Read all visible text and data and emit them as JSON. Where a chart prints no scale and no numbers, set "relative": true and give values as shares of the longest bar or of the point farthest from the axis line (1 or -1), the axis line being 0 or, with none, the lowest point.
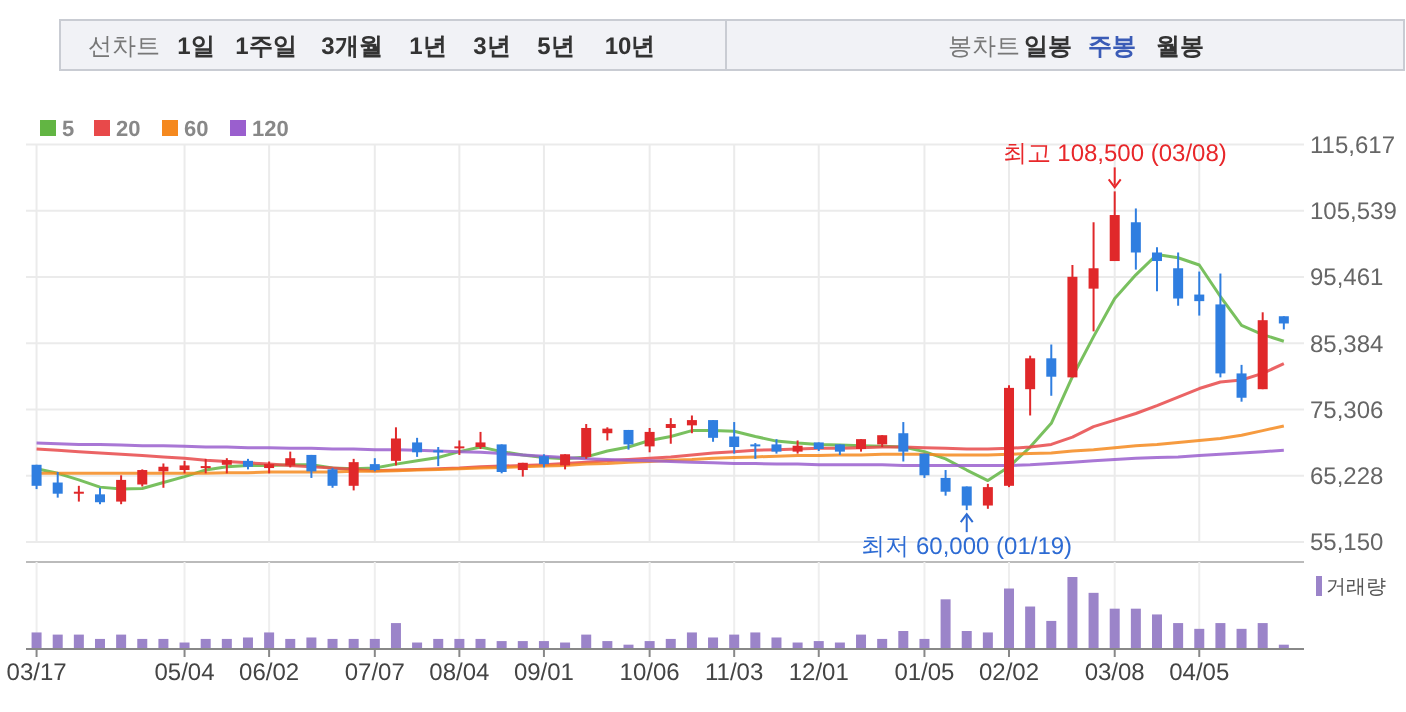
{
  "chart_data": [
    {
      "type": "other",
      "annotations": [
        "선차트",
        "1일",
        "1주일",
        "3개월",
        "1년",
        "3년",
        "5년",
        "10년",
        "봉차트",
        "일봉",
        "주봉",
        "월봉"
      ]
    },
    {
      "type": "candlestick",
      "categories": [
        "03/17",
        null,
        null,
        null,
        null,
        null,
        null,
        "05/04",
        null,
        null,
        null,
        "06/02",
        null,
        null,
        null,
        null,
        "07/07",
        null,
        null,
        null,
        "08/04",
        null,
        null,
        null,
        "09/01",
        null,
        null,
        null,
        null,
        "10/06",
        null,
        null,
        null,
        "11/03",
        null,
        null,
        null,
        "12/01",
        null,
        null,
        null,
        null,
        "01/05",
        null,
        null,
        null,
        "02/02",
        null,
        null,
        null,
        null,
        "03/08",
        null,
        null,
        null,
        "04/05",
        null,
        null,
        null,
        null
      ],
      "ohlc": [
        [
          66900,
          66900,
          63200,
          63700
        ],
        [
          64200,
          65800,
          61900,
          62500
        ],
        [
          62600,
          63700,
          61300,
          62800
        ],
        [
          62400,
          63400,
          60900,
          61200
        ],
        [
          61300,
          65300,
          60900,
          64600
        ],
        [
          63900,
          66200,
          63600,
          66100
        ],
        [
          65900,
          67100,
          63400,
          66600
        ],
        [
          66100,
          67500,
          65600,
          66800
        ],
        [
          66500,
          67800,
          65600,
          66700
        ],
        [
          66900,
          67900,
          65600,
          67600
        ],
        [
          67500,
          67800,
          66200,
          66600
        ],
        [
          66400,
          67400,
          65600,
          67000
        ],
        [
          66800,
          68900,
          66500,
          67900
        ],
        [
          68400,
          68400,
          64900,
          65900
        ],
        [
          66200,
          66400,
          63400,
          63700
        ],
        [
          63700,
          67800,
          63000,
          67300
        ],
        [
          67000,
          67900,
          65900,
          66100
        ],
        [
          67500,
          72600,
          66800,
          70900
        ],
        [
          70300,
          71000,
          68100,
          68800
        ],
        [
          69100,
          69600,
          66700,
          68900
        ],
        [
          69400,
          70600,
          68400,
          69700
        ],
        [
          69600,
          71900,
          69300,
          70300
        ],
        [
          70000,
          70000,
          65600,
          65800
        ],
        [
          66100,
          67200,
          65100,
          67200
        ],
        [
          68200,
          68500,
          66500,
          67000
        ],
        [
          66800,
          68500,
          66200,
          68500
        ],
        [
          68100,
          73100,
          67800,
          72500
        ],
        [
          71700,
          72600,
          70600,
          72400
        ],
        [
          72200,
          72200,
          69200,
          70000
        ],
        [
          69700,
          72500,
          68800,
          71900
        ],
        [
          72500,
          74000,
          70100,
          73100
        ],
        [
          72900,
          74400,
          71700,
          73700
        ],
        [
          73700,
          73700,
          70400,
          71000
        ],
        [
          71200,
          73400,
          68600,
          69600
        ],
        [
          70000,
          70200,
          67800,
          69700
        ],
        [
          70000,
          70800,
          68600,
          68900
        ],
        [
          68900,
          70600,
          68600,
          69800
        ],
        [
          70300,
          70300,
          69000,
          69300
        ],
        [
          70000,
          70000,
          68400,
          68900
        ],
        [
          69300,
          70800,
          68900,
          70800
        ],
        [
          70000,
          71400,
          69600,
          71400
        ],
        [
          71700,
          73400,
          67400,
          68900
        ],
        [
          68600,
          68600,
          64900,
          65300
        ],
        [
          64900,
          66100,
          62200,
          62800
        ],
        [
          63600,
          63600,
          60000,
          60700
        ],
        [
          60700,
          64000,
          60200,
          63500
        ],
        [
          63700,
          79000,
          63500,
          78600
        ],
        [
          78400,
          83500,
          74400,
          83100
        ],
        [
          83100,
          85200,
          77400,
          80300
        ],
        [
          80200,
          97300,
          80200,
          95500
        ],
        [
          93700,
          103800,
          87200,
          96800
        ],
        [
          97900,
          108500,
          97900,
          104900
        ],
        [
          103800,
          105900,
          96600,
          99200
        ],
        [
          99200,
          100000,
          93300,
          97900
        ],
        [
          96800,
          99200,
          91100,
          92200
        ],
        [
          92800,
          96300,
          89600,
          91800
        ],
        [
          91300,
          96000,
          80200,
          80800
        ],
        [
          80800,
          82100,
          76500,
          77100
        ],
        [
          78400,
          90100,
          78400,
          88900
        ],
        [
          89500,
          89500,
          87500,
          88400
        ]
      ],
      "colors": [
        "#2f7ee0",
        "#2f7ee0",
        "#e0282a",
        "#2f7ee0",
        "#e0282a",
        "#e0282a",
        "#e0282a",
        "#e0282a",
        "#e0282a",
        "#e0282a",
        "#2f7ee0",
        "#e0282a",
        "#e0282a",
        "#2f7ee0",
        "#2f7ee0",
        "#e0282a",
        "#2f7ee0",
        "#e0282a",
        "#2f7ee0",
        "#2f7ee0",
        "#e0282a",
        "#e0282a",
        "#2f7ee0",
        "#e0282a",
        "#2f7ee0",
        "#e0282a",
        "#e0282a",
        "#e0282a",
        "#2f7ee0",
        "#e0282a",
        "#e0282a",
        "#e0282a",
        "#2f7ee0",
        "#2f7ee0",
        "#2f7ee0",
        "#2f7ee0",
        "#e0282a",
        "#2f7ee0",
        "#2f7ee0",
        "#e0282a",
        "#e0282a",
        "#2f7ee0",
        "#2f7ee0",
        "#2f7ee0",
        "#2f7ee0",
        "#e0282a",
        "#e0282a",
        "#e0282a",
        "#2f7ee0",
        "#e0282a",
        "#e0282a",
        "#e0282a",
        "#2f7ee0",
        "#2f7ee0",
        "#2f7ee0",
        "#2f7ee0",
        "#2f7ee0",
        "#2f7ee0",
        "#e0282a",
        "#2f7ee0"
      ],
      "series": [
        {
          "name": "5",
          "type": "line",
          "color": "#62b543",
          "values": [
            66300,
            65600,
            64600,
            63500,
            63200,
            63300,
            64200,
            65100,
            66100,
            66600,
            66800,
            66800,
            66900,
            66900,
            66400,
            66300,
            66400,
            67000,
            67500,
            68000,
            68900,
            69600,
            68900,
            68400,
            68000,
            67800,
            68100,
            69000,
            69600,
            70600,
            71200,
            72100,
            72100,
            72000,
            71200,
            70500,
            70200,
            70000,
            69900,
            69800,
            69700,
            69600,
            68900,
            67800,
            66100,
            64500,
            66600,
            69600,
            73200,
            80300,
            86400,
            92200,
            95800,
            98900,
            98400,
            97300,
            92500,
            88100,
            86700,
            85700
          ]
        },
        {
          "name": "20",
          "type": "line",
          "color": "#e8494a",
          "values": [
            69300,
            69100,
            68900,
            68700,
            68500,
            68300,
            68100,
            67900,
            67600,
            67400,
            67200,
            67000,
            66800,
            66600,
            66400,
            66200,
            66000,
            66100,
            66200,
            66300,
            66400,
            66600,
            66700,
            66800,
            66900,
            67100,
            67300,
            67500,
            67700,
            67900,
            68100,
            68400,
            68700,
            68900,
            69100,
            69200,
            69300,
            69400,
            69400,
            69500,
            69600,
            69600,
            69500,
            69400,
            69300,
            69300,
            69400,
            69600,
            70000,
            71100,
            72700,
            73700,
            74700,
            75900,
            77200,
            78500,
            79500,
            79800,
            80800,
            82300
          ]
        },
        {
          "name": "60",
          "type": "line",
          "color": "#f5891f",
          "values": [
            65600,
            65600,
            65600,
            65600,
            65600,
            65600,
            65600,
            65600,
            65600,
            65700,
            65700,
            65800,
            65800,
            65800,
            65800,
            65900,
            65900,
            66000,
            66100,
            66200,
            66300,
            66400,
            66500,
            66600,
            66700,
            66800,
            67000,
            67100,
            67300,
            67400,
            67600,
            67700,
            67900,
            68000,
            68100,
            68200,
            68300,
            68300,
            68400,
            68400,
            68500,
            68500,
            68500,
            68400,
            68400,
            68400,
            68500,
            68600,
            68700,
            69000,
            69200,
            69500,
            69800,
            70000,
            70300,
            70600,
            70900,
            71400,
            72100,
            72800
          ]
        },
        {
          "name": "120",
          "type": "line",
          "color": "#9a5fce",
          "values": [
            70200,
            70100,
            70000,
            70000,
            69900,
            69800,
            69800,
            69700,
            69600,
            69600,
            69500,
            69500,
            69400,
            69400,
            69300,
            69300,
            69200,
            69200,
            69100,
            69000,
            68900,
            68800,
            68600,
            68400,
            68200,
            68000,
            67800,
            67700,
            67600,
            67500,
            67400,
            67300,
            67200,
            67100,
            67100,
            67000,
            67000,
            66900,
            66900,
            66900,
            66900,
            66800,
            66800,
            66800,
            66800,
            66800,
            66800,
            66900,
            67100,
            67300,
            67500,
            67700,
            67900,
            68000,
            68100,
            68300,
            68500,
            68700,
            68900,
            69100
          ]
        }
      ],
      "ylim": [
        55150,
        115617
      ],
      "yticks": [
        {
          "value": 55150,
          "label": "55,150"
        },
        {
          "value": 65228,
          "label": "65,228"
        },
        {
          "value": 75306,
          "label": "75,306"
        },
        {
          "value": 85384,
          "label": "85,384"
        },
        {
          "value": 95461,
          "label": "95,461"
        },
        {
          "value": 105539,
          "label": "105,539"
        },
        {
          "value": 115617,
          "label": "115,617"
        }
      ],
      "grid": true,
      "legend": "top left",
      "tick_labels": "y",
      "annotations": [
        {
          "text": "최고 108,500 (03/08)",
          "x": "03/08",
          "y": 108500
        },
        {
          "text": "최저 60,000 (01/19)",
          "y": 60000
        }
      ]
    },
    {
      "type": "bar",
      "relative": true,
      "grid": "x",
      "legend": "top right",
      "categories": [
        "03/17",
        null,
        null,
        null,
        null,
        null,
        null,
        "05/04",
        null,
        null,
        null,
        "06/02",
        null,
        null,
        null,
        null,
        "07/07",
        null,
        null,
        null,
        "08/04",
        null,
        null,
        null,
        "09/01",
        null,
        null,
        null,
        null,
        "10/06",
        null,
        null,
        null,
        "11/03",
        null,
        null,
        null,
        "12/01",
        null,
        null,
        null,
        null,
        "01/05",
        null,
        null,
        null,
        "02/02",
        null,
        null,
        null,
        null,
        "03/08",
        null,
        null,
        null,
        "04/05",
        null,
        null,
        null,
        null
      ],
      "series": [
        {
          "name": "거래량",
          "color": "#9b84c9",
          "values": [
            0.23,
            0.2,
            0.2,
            0.14,
            0.2,
            0.14,
            0.14,
            0.09,
            0.14,
            0.14,
            0.16,
            0.23,
            0.14,
            0.16,
            0.14,
            0.14,
            0.14,
            0.36,
            0.09,
            0.14,
            0.14,
            0.14,
            0.11,
            0.11,
            0.11,
            0.09,
            0.2,
            0.11,
            0.06,
            0.11,
            0.14,
            0.23,
            0.16,
            0.2,
            0.23,
            0.16,
            0.09,
            0.11,
            0.09,
            0.2,
            0.14,
            0.25,
            0.14,
            0.69,
            0.25,
            0.23,
            0.84,
            0.59,
            0.39,
            1,
            0.78,
            0.56,
            0.56,
            0.48,
            0.36,
            0.28,
            0.36,
            0.28,
            0.36,
            0.06
          ]
        }
      ]
    }
  ]
}
